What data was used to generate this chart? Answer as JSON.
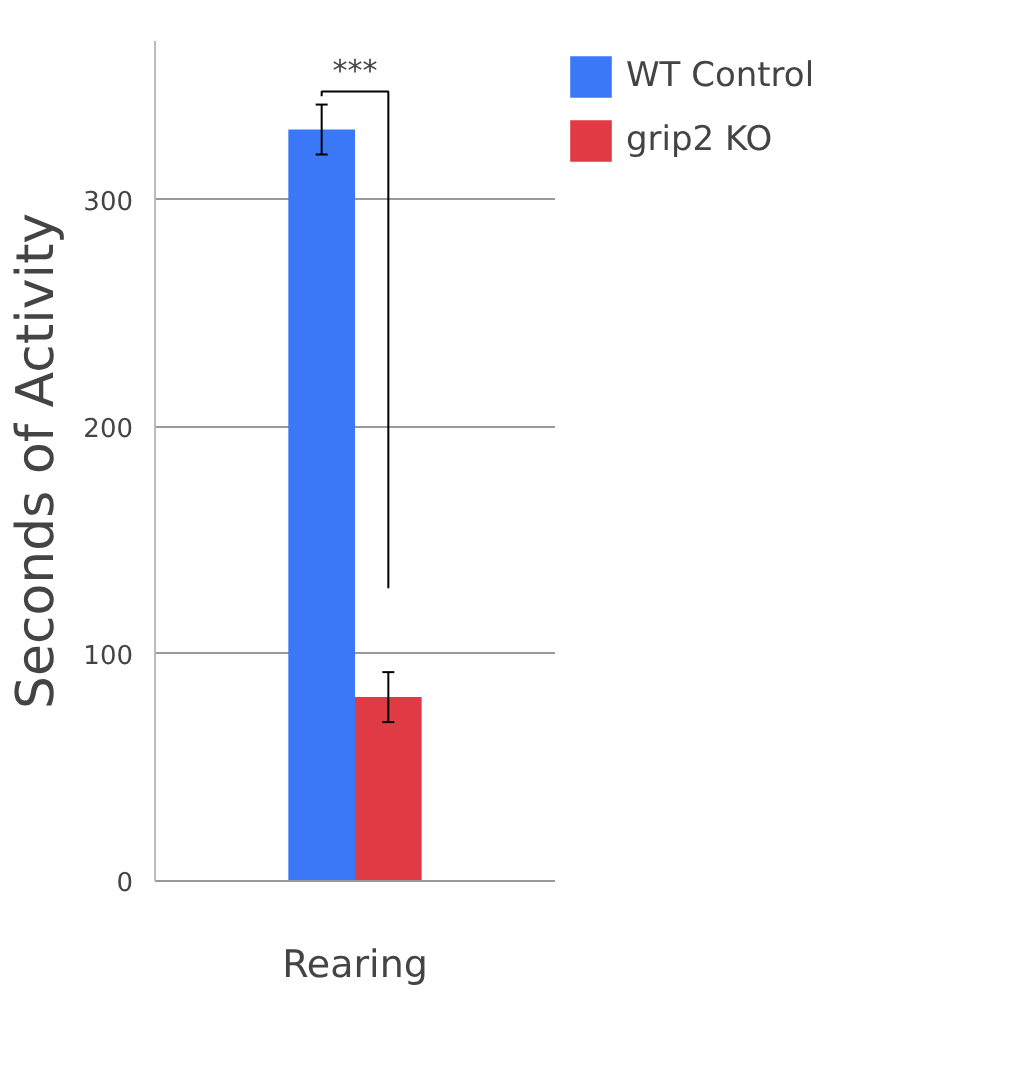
{
  "chart_data": {
    "type": "bar",
    "categories": [
      "Rearing"
    ],
    "ylabel": "Seconds of Activity",
    "series": [
      {
        "name": "WT Control",
        "color": "#3b78f7",
        "values": [
          331
        ],
        "errors": [
          11
        ]
      },
      {
        "name": "grip2 KO",
        "color": "#e03a44",
        "values": [
          81
        ],
        "errors": [
          11
        ]
      }
    ],
    "ylim": [
      0,
      370
    ],
    "yticks": [
      0,
      100,
      200,
      300
    ],
    "grid": "y",
    "legend": "top right",
    "annotations": [
      "***"
    ]
  }
}
